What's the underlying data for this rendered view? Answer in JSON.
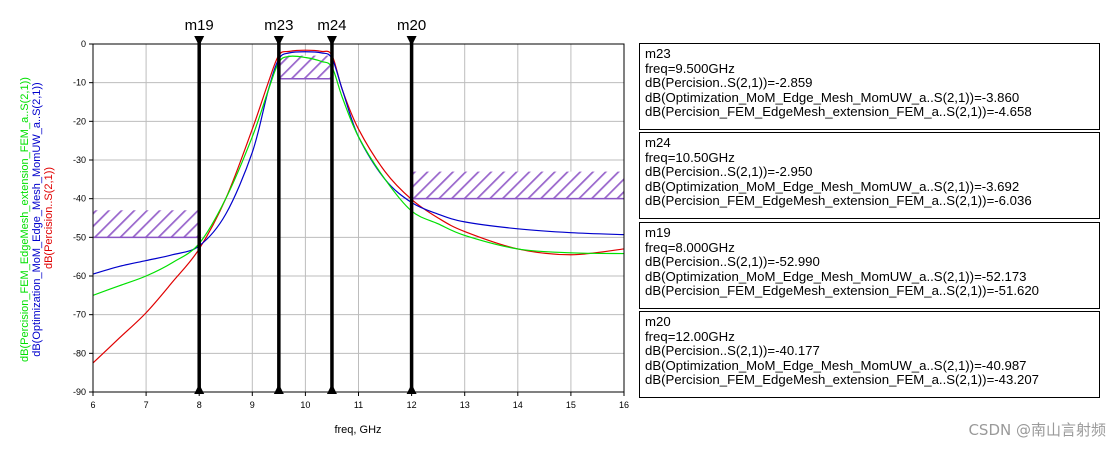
{
  "chart_data": {
    "type": "line",
    "xlabel": "freq, GHz",
    "xlim": [
      6,
      16
    ],
    "ylim": [
      -90,
      0
    ],
    "x_ticks": [
      6,
      7,
      8,
      9,
      10,
      11,
      12,
      13,
      14,
      15,
      16
    ],
    "y_ticks": [
      0,
      -10,
      -20,
      -30,
      -40,
      -50,
      -60,
      -70,
      -80,
      -90
    ],
    "grid": true,
    "ylabels": [
      {
        "text": "dB(Percision_FEM_EdgeMesh_extension_FEM_a..S(2,1))",
        "color": "#00e000"
      },
      {
        "text": "dB(Optimization_MoM_Edge_Mesh_MomUW_a..S(2,1))",
        "color": "#0000cc"
      },
      {
        "text": "dB(Percision..S(2,1))",
        "color": "#e00000"
      }
    ],
    "series": [
      {
        "color": "#e00000",
        "x": [
          6,
          6.5,
          7,
          7.5,
          8,
          8.5,
          9,
          9.3,
          9.5,
          9.7,
          10,
          10.3,
          10.5,
          10.7,
          11,
          11.5,
          12,
          12.5,
          13,
          14,
          15,
          16
        ],
        "y": [
          -82.5,
          -76,
          -69.5,
          -61.5,
          -53,
          -40,
          -22,
          -10,
          -2.9,
          -1.9,
          -1.6,
          -1.9,
          -2.95,
          -12,
          -22,
          -33,
          -40.2,
          -45,
          -48.5,
          -53,
          -54.5,
          -53
        ]
      },
      {
        "color": "#0000cc",
        "x": [
          6,
          6.5,
          7,
          7.5,
          8,
          8.5,
          9,
          9.3,
          9.5,
          9.7,
          10,
          10.3,
          10.5,
          10.7,
          11,
          11.5,
          12,
          12.5,
          13,
          14,
          15,
          16
        ],
        "y": [
          -59.5,
          -57.5,
          -56,
          -54.5,
          -52.2,
          -44,
          -28,
          -12,
          -3.9,
          -2.3,
          -2,
          -2.3,
          -3.7,
          -12,
          -24,
          -35,
          -41,
          -44,
          -46,
          -47.8,
          -48.8,
          -49.3
        ]
      },
      {
        "color": "#00e000",
        "x": [
          6,
          6.5,
          7,
          7.5,
          8,
          8.5,
          9,
          9.3,
          9.5,
          9.7,
          10,
          10.3,
          10.5,
          10.7,
          11,
          11.5,
          12,
          12.5,
          13,
          14,
          15,
          16
        ],
        "y": [
          -65,
          -62.5,
          -60,
          -56.5,
          -51.6,
          -40,
          -24,
          -12,
          -4.7,
          -3.2,
          -3.5,
          -4.5,
          -6,
          -14,
          -24,
          -35,
          -43.2,
          -46.5,
          -49.5,
          -53,
          -54,
          -54.2
        ]
      }
    ],
    "masks": [
      {
        "x": [
          6,
          8
        ],
        "y": [
          -50,
          -43
        ]
      },
      {
        "x": [
          9.5,
          10.5
        ],
        "y": [
          -9,
          -3
        ]
      },
      {
        "x": [
          12,
          16
        ],
        "y": [
          -40,
          -33
        ]
      }
    ],
    "markers": [
      {
        "name": "m19",
        "x": 8
      },
      {
        "name": "m23",
        "x": 9.5
      },
      {
        "name": "m24",
        "x": 10.5
      },
      {
        "name": "m20",
        "x": 12
      }
    ]
  },
  "marker_readouts": [
    {
      "name": "m23",
      "freq": "freq=9.500GHz",
      "lines": [
        "dB(Percision..S(2,1))=-2.859",
        "dB(Optimization_MoM_Edge_Mesh_MomUW_a..S(2,1))=-3.860",
        "dB(Percision_FEM_EdgeMesh_extension_FEM_a..S(2,1))=-4.658"
      ]
    },
    {
      "name": "m24",
      "freq": "freq=10.50GHz",
      "lines": [
        "dB(Percision..S(2,1))=-2.950",
        "dB(Optimization_MoM_Edge_Mesh_MomUW_a..S(2,1))=-3.692",
        "dB(Percision_FEM_EdgeMesh_extension_FEM_a..S(2,1))=-6.036"
      ]
    },
    {
      "name": "m19",
      "freq": "freq=8.000GHz",
      "lines": [
        "dB(Percision..S(2,1))=-52.990",
        "dB(Optimization_MoM_Edge_Mesh_MomUW_a..S(2,1))=-52.173",
        "dB(Percision_FEM_EdgeMesh_extension_FEM_a..S(2,1))=-51.620"
      ]
    },
    {
      "name": "m20",
      "freq": "freq=12.00GHz",
      "lines": [
        "dB(Percision..S(2,1))=-40.177",
        "dB(Optimization_MoM_Edge_Mesh_MomUW_a..S(2,1))=-40.987",
        "dB(Percision_FEM_EdgeMesh_extension_FEM_a..S(2,1))=-43.207"
      ]
    }
  ],
  "watermark": "CSDN @南山言射频"
}
